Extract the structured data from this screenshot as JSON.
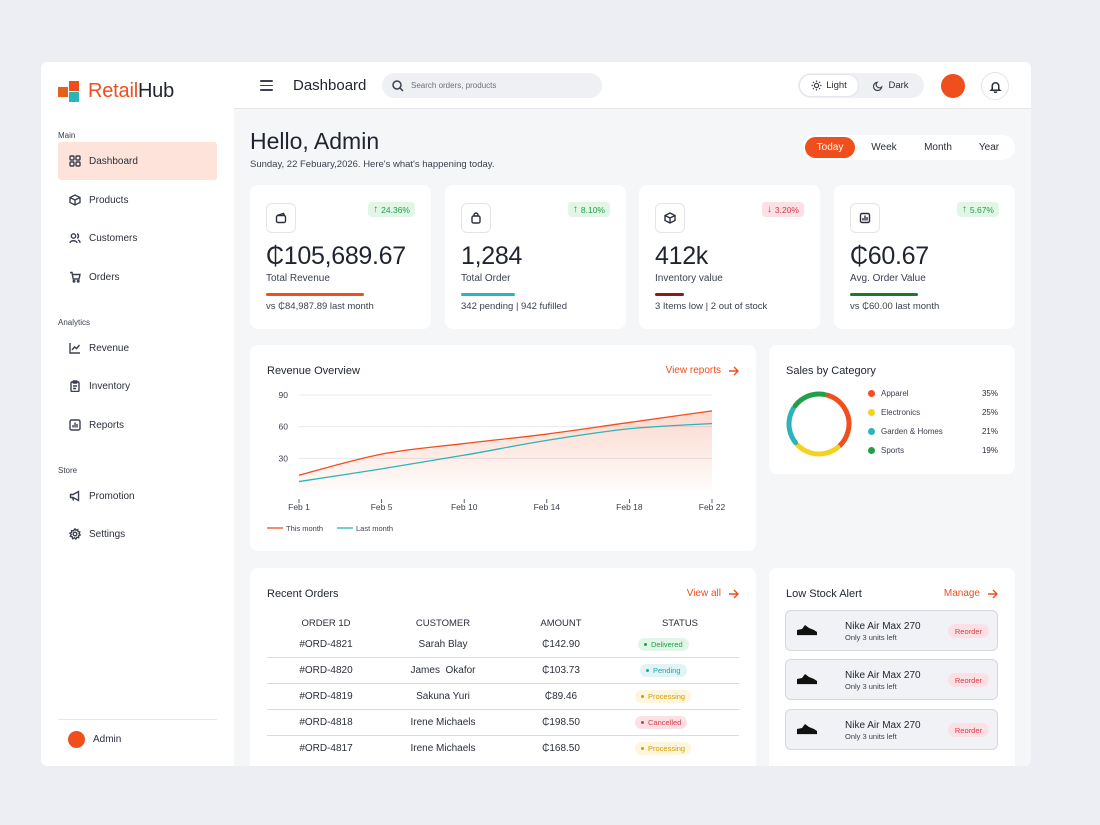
{
  "brand": {
    "name_a": "Retail",
    "name_b": "Hub"
  },
  "sidebar": {
    "sections": [
      {
        "label": "Main",
        "items": [
          {
            "label": "Dashboard",
            "icon": "grid-icon",
            "active": true
          },
          {
            "label": "Products",
            "icon": "cube-icon"
          },
          {
            "label": "Customers",
            "icon": "users-icon"
          },
          {
            "label": "Orders",
            "icon": "cart-icon"
          }
        ]
      },
      {
        "label": "Analytics",
        "items": [
          {
            "label": "Revenue",
            "icon": "line-chart-icon"
          },
          {
            "label": "Inventory",
            "icon": "clipboard-icon"
          },
          {
            "label": "Reports",
            "icon": "report-icon"
          }
        ]
      },
      {
        "label": "Store",
        "items": [
          {
            "label": "Promotion",
            "icon": "megaphone-icon"
          },
          {
            "label": "Settings",
            "icon": "gear-icon"
          }
        ]
      }
    ],
    "user": "Admin"
  },
  "topbar": {
    "title": "Dashboard",
    "search_placeholder": "Search orders, products",
    "theme_light": "Light",
    "theme_dark": "Dark"
  },
  "greeting": {
    "title": "Hello, Admin",
    "subtitle": "Sunday, 22 Febuary,2026.  Here's what's happening today."
  },
  "ranges": [
    "Today",
    "Week",
    "Month",
    "Year"
  ],
  "active_range": "Today",
  "stats": [
    {
      "icon": "wallet-icon",
      "badge": "24.36%",
      "trend": "up",
      "value": "₵105,689.67",
      "label": "Total Revenue",
      "foot": "vs ₵84,987.89 last month",
      "bar_color": "#f04e1c"
    },
    {
      "icon": "bag-icon",
      "badge": "8.10%",
      "trend": "up",
      "value": "1,284",
      "label": "Total Order",
      "foot": "342 pending | 942 fufilled",
      "bar_color": "#2bb5b8"
    },
    {
      "icon": "box-icon",
      "badge": "3.20%",
      "trend": "down",
      "value": "412k",
      "label": "Inventory value",
      "foot": "3 Items low | 2 out of stock",
      "bar_color": "#8b1a1a"
    },
    {
      "icon": "bar-chart-icon",
      "badge": "5.67%",
      "trend": "up",
      "value": "₵60.67",
      "label": "Avg. Order Value",
      "foot": "vs ₵60.00 last month",
      "bar_color": "#1c7a2c"
    }
  ],
  "revenue": {
    "title": "Revenue Overview",
    "link": "View reports"
  },
  "chart_data": {
    "type": "line",
    "title": "Revenue Overview",
    "x": [
      "Feb 1",
      "Feb 5",
      "Feb 10",
      "Feb 14",
      "Feb 18",
      "Feb 22"
    ],
    "ylim": [
      0,
      90
    ],
    "yticks": [
      30,
      60,
      90
    ],
    "grid": true,
    "legend_position": "bottom-left",
    "series": [
      {
        "name": "This month",
        "color": "#f04e1c",
        "values": [
          14,
          34,
          44,
          53,
          64,
          75
        ]
      },
      {
        "name": "Last month",
        "color": "#2bb5b8",
        "values": [
          8,
          20,
          33,
          47,
          58,
          63
        ]
      }
    ]
  },
  "sales": {
    "title": "Sales by Category",
    "categories": [
      {
        "name": "Apparel",
        "pct": "35%",
        "value": 35,
        "color": "#f04e1c"
      },
      {
        "name": "Electronics",
        "pct": "25%",
        "value": 25,
        "color": "#f5d31c"
      },
      {
        "name": "Garden & Homes",
        "pct": "21%",
        "value": 21,
        "color": "#2bb5b8"
      },
      {
        "name": "Sports",
        "pct": "19%",
        "value": 19,
        "color": "#21a049"
      }
    ]
  },
  "orders": {
    "title": "Recent Orders",
    "link": "View all",
    "columns": [
      "ORDER 1D",
      "CUSTOMER",
      "AMOUNT",
      "STATUS"
    ],
    "rows": [
      {
        "id": "#ORD-4821",
        "customer": "Sarah Blay",
        "amount": "₵142.90",
        "status": "Delivered",
        "kind": "delivered"
      },
      {
        "id": "#ORD-4820",
        "customer": "James  Okafor",
        "amount": "₵103.73",
        "status": "Pending",
        "kind": "pending"
      },
      {
        "id": "#ORD-4819",
        "customer": "Sakuna Yuri",
        "amount": "₵89.46",
        "status": "Processing",
        "kind": "processing"
      },
      {
        "id": "#ORD-4818",
        "customer": "Irene Michaels",
        "amount": "₵198.50",
        "status": "Cancelled",
        "kind": "cancelled"
      },
      {
        "id": "#ORD-4817",
        "customer": "Irene Michaels",
        "amount": "₵168.50",
        "status": "Processing",
        "kind": "processing"
      }
    ]
  },
  "low_stock": {
    "title": "Low Stock Alert",
    "link": "Manage",
    "items": [
      {
        "name": "Nike Air Max 270",
        "sub": "Only 3 units left",
        "action": "Reorder"
      },
      {
        "name": "Nike Air Max 270",
        "sub": "Only 3 units left",
        "action": "Reorder"
      },
      {
        "name": "Nike Air Max 270",
        "sub": "Only 3 units left",
        "action": "Reorder"
      }
    ]
  }
}
